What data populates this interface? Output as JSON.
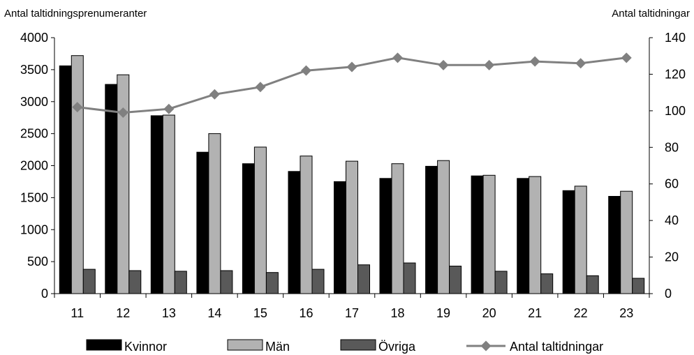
{
  "chart_data": {
    "type": "bar",
    "categories": [
      "11",
      "12",
      "13",
      "14",
      "15",
      "16",
      "17",
      "18",
      "19",
      "20",
      "21",
      "22",
      "23"
    ],
    "left_axis": {
      "label": "Antal taltidningsprenumeranter",
      "range": [
        0,
        4000
      ],
      "ticks": [
        "0",
        "500",
        "1000",
        "1500",
        "2000",
        "2500",
        "3000",
        "3500",
        "4000"
      ]
    },
    "right_axis": {
      "label": "Antal taltidningar",
      "range": [
        0,
        140
      ],
      "ticks": [
        "0",
        "20",
        "40",
        "60",
        "80",
        "100",
        "120",
        "140"
      ]
    },
    "series": [
      {
        "name": "Kvinnor",
        "type": "bar",
        "axis": "left",
        "color": "#000000",
        "values": [
          3560,
          3270,
          2780,
          2210,
          2030,
          1910,
          1750,
          1800,
          1990,
          1840,
          1800,
          1610,
          1520
        ]
      },
      {
        "name": "Män",
        "type": "bar",
        "axis": "left",
        "color": "#b2b2b2",
        "values": [
          3720,
          3420,
          2790,
          2500,
          2290,
          2150,
          2070,
          2030,
          2080,
          1850,
          1830,
          1680,
          1600
        ]
      },
      {
        "name": "Övriga",
        "type": "bar",
        "axis": "left",
        "color": "#595959",
        "values": [
          380,
          360,
          350,
          360,
          330,
          380,
          450,
          480,
          430,
          350,
          310,
          280,
          240
        ]
      },
      {
        "name": "Antal taltidningar",
        "type": "line",
        "axis": "right",
        "color": "#808080",
        "values": [
          102,
          99,
          101,
          109,
          113,
          122,
          124,
          129,
          125,
          125,
          127,
          126,
          129
        ]
      }
    ],
    "grid": false,
    "legend_position": "bottom"
  }
}
